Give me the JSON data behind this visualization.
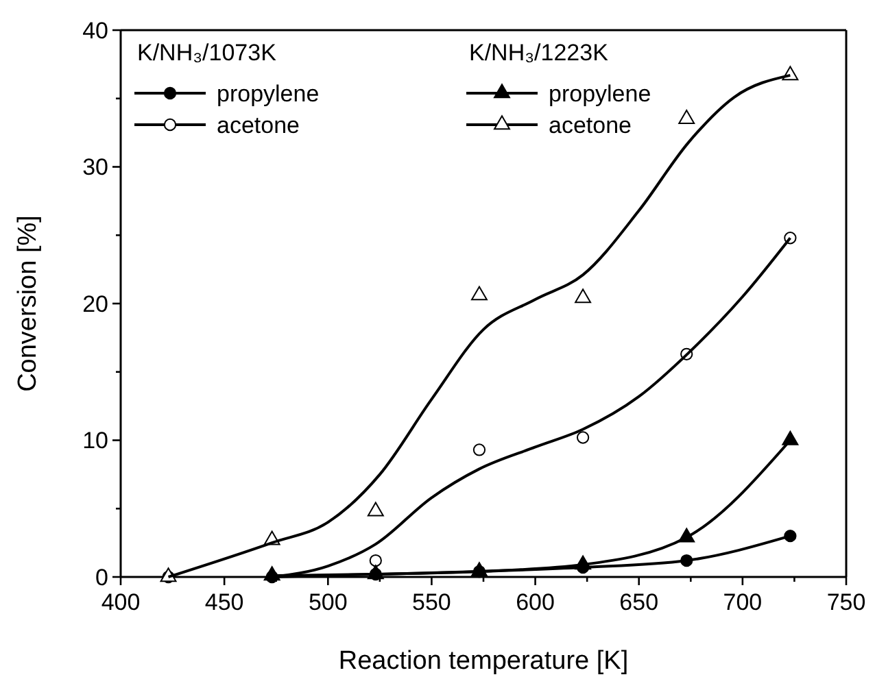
{
  "chart_data": {
    "type": "scatter",
    "xlabel": "Reaction temperature [K]",
    "ylabel": "Conversion [%]",
    "xlim": [
      400,
      750
    ],
    "ylim": [
      0,
      40
    ],
    "xticks": [
      400,
      {
        "value": 425,
        "label": null
      },
      450,
      {
        "value": 475,
        "label": null
      },
      500,
      {
        "value": 525,
        "label": null
      },
      550,
      {
        "value": 575,
        "label": null
      },
      600,
      {
        "value": 625,
        "label": null
      },
      650,
      {
        "value": 675,
        "label": null
      },
      700,
      {
        "value": 725,
        "label": null
      },
      750
    ],
    "yticks": [
      0,
      {
        "value": 5,
        "label": null
      },
      10,
      {
        "value": 15,
        "label": null
      },
      20,
      {
        "value": 25,
        "label": null
      },
      30,
      {
        "value": 35,
        "label": null
      },
      40
    ],
    "grid": false,
    "legend": "top left",
    "annotations": [
      "K/NH₃/1073K",
      "K/NH₃/1223K"
    ],
    "series": [
      {
        "name": "propylene",
        "type": "line",
        "marker": "circle",
        "line_style": "solid",
        "color": "#000000",
        "x": [
          473,
          523,
          573,
          623,
          673,
          723
        ],
        "values": [
          0,
          0.2,
          0.4,
          0.7,
          1.2,
          3.0
        ]
      },
      {
        "name": "acetone",
        "marker": "circle",
        "color": "#000000",
        "x": [
          423,
          523,
          573,
          623,
          673,
          723
        ],
        "values": [
          0,
          1.2,
          9.3,
          10.2,
          16.3,
          24.8
        ]
      },
      {
        "name": "propylene",
        "type": "line",
        "marker": "triangle",
        "line_style": "solid",
        "color": "#000000",
        "x": [
          473,
          523,
          573,
          623,
          673,
          723
        ],
        "values": [
          0.1,
          0.2,
          0.4,
          0.9,
          2.9,
          10.0
        ]
      },
      {
        "name": "acetone",
        "marker": "triangle",
        "color": "#000000",
        "x": [
          423,
          473,
          523,
          573,
          623,
          673,
          723
        ],
        "values": [
          0,
          2.7,
          4.8,
          20.6,
          20.4,
          33.5,
          36.7
        ]
      },
      {
        "type": "line",
        "marker": "none",
        "line_style": "solid",
        "color": "#000000",
        "x": [
          473,
          500,
          523,
          550,
          573,
          600,
          623,
          650,
          674,
          700,
          723
        ],
        "values": [
          0,
          0.8,
          2.4,
          5.8,
          7.9,
          9.5,
          10.8,
          13.2,
          16.4,
          20.5,
          24.8
        ]
      },
      {
        "type": "line",
        "marker": "none",
        "line_style": "solid",
        "color": "#000000",
        "x": [
          423,
          473,
          500,
          525,
          550,
          575,
          600,
          623,
          650,
          674,
          696,
          723
        ],
        "values": [
          0,
          2.5,
          4.0,
          7.5,
          13.0,
          18.1,
          20.3,
          22.1,
          26.8,
          31.8,
          35.1,
          36.7
        ]
      }
    ]
  }
}
